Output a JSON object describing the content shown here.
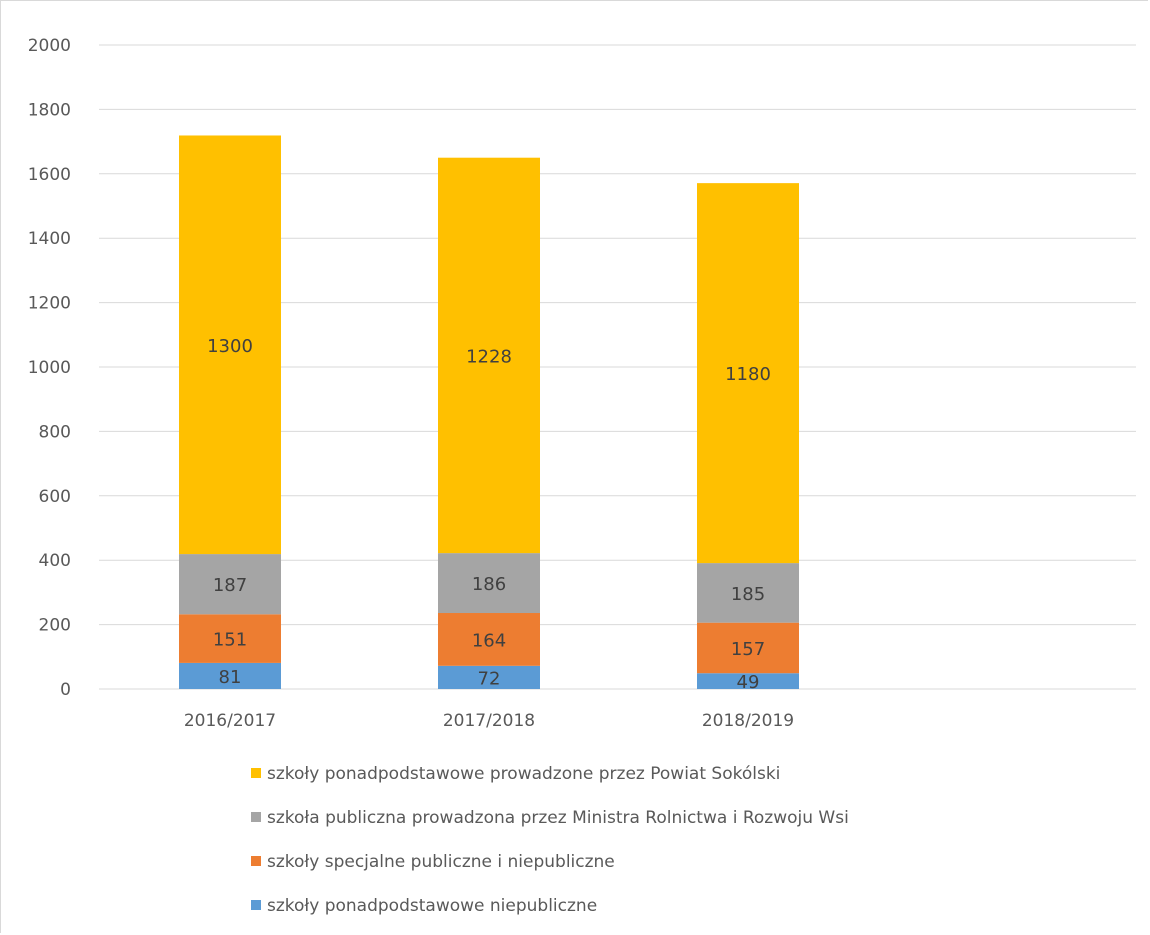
{
  "chart_data": {
    "type": "bar",
    "stacked": true,
    "categories": [
      "2016/2017",
      "2017/2018",
      "2018/2019"
    ],
    "series": [
      {
        "name": "szkoły ponadpodstawowe niepubliczne",
        "values": [
          81,
          72,
          49
        ],
        "color": "#5b9bd5"
      },
      {
        "name": "szkoły specjalne publiczne i niepubliczne",
        "values": [
          151,
          164,
          157
        ],
        "color": "#ed7d31"
      },
      {
        "name": "szkoła publiczna prowadzona przez Ministra Rolnictwa i Rozwoju Wsi",
        "values": [
          187,
          186,
          185
        ],
        "color": "#a5a5a5"
      },
      {
        "name": "szkoły ponadpodstawowe prowadzone przez Powiat Sokólski",
        "values": [
          1300,
          1228,
          1180
        ],
        "color": "#ffc000"
      }
    ],
    "legend_order": [
      3,
      2,
      1,
      0
    ],
    "yticks": [
      0,
      200,
      400,
      600,
      800,
      1000,
      1200,
      1400,
      1600,
      1800,
      2000
    ],
    "ylim": [
      0,
      2000
    ],
    "grid": true,
    "legend_position": "bottom"
  }
}
